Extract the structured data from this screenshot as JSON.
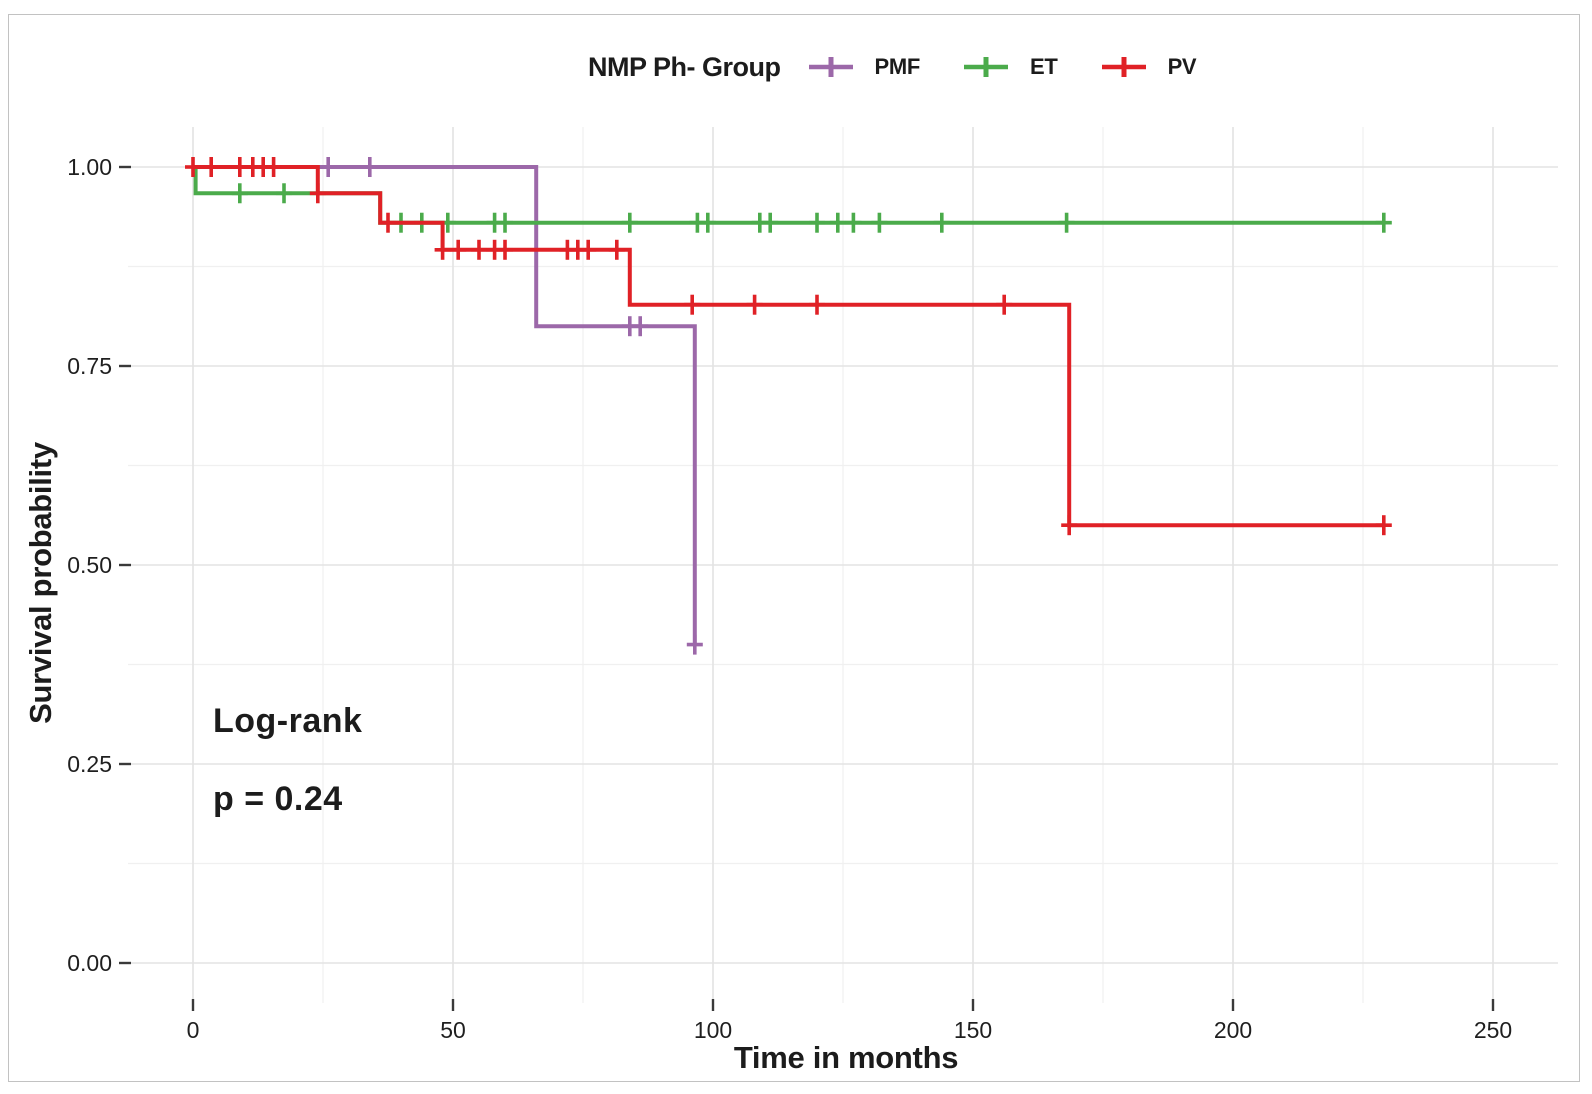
{
  "figure": {
    "background": "#ffffff",
    "border_color": "#c2c2c2"
  },
  "legend": {
    "title": "NMP Ph- Group",
    "items": [
      {
        "label": "PMF",
        "color": "#9c68a9",
        "icon": "plus-line-key-icon"
      },
      {
        "label": "ET",
        "color": "#4bab4b",
        "icon": "plus-line-key-icon"
      },
      {
        "label": "PV",
        "color": "#e02126",
        "icon": "plus-line-key-icon"
      }
    ]
  },
  "annotation": {
    "line1": "Log-rank",
    "line2": "p = 0.24"
  },
  "axes": {
    "x": {
      "title": "Time in months",
      "range": [
        0,
        250
      ],
      "ticks": [
        {
          "label": "0",
          "value": 0
        },
        {
          "label": "50",
          "value": 50
        },
        {
          "label": "100",
          "value": 100
        },
        {
          "label": "150",
          "value": 150
        },
        {
          "label": "200",
          "value": 200
        },
        {
          "label": "250",
          "value": 250
        }
      ],
      "minor_values": [
        25,
        75,
        125,
        175,
        225
      ]
    },
    "y": {
      "title": "Survival probability",
      "range": [
        0,
        1
      ],
      "ticks": [
        {
          "label": "1.00",
          "value": 1.0
        },
        {
          "label": "0.75",
          "value": 0.75
        },
        {
          "label": "0.50",
          "value": 0.5
        },
        {
          "label": "0.25",
          "value": 0.25
        },
        {
          "label": "0.00",
          "value": 0.0
        }
      ],
      "minor_values": [
        0.875,
        0.625,
        0.375,
        0.125
      ]
    }
  },
  "chart_data": {
    "type": "line",
    "subtype": "kaplan-meier-survival-step",
    "title": "NMP Ph- Group",
    "xlabel": "Time in months",
    "ylabel": "Survival probability",
    "xlim": [
      0,
      250
    ],
    "ylim": [
      0,
      1
    ],
    "grid": true,
    "legend_position": "top-center",
    "test_name": "Log-rank",
    "pvalue_text": "p = 0.24",
    "series": [
      {
        "name": "PMF",
        "color": "#9c68a9",
        "steps": [
          [
            0,
            1.0
          ],
          [
            66,
            1.0
          ],
          [
            66,
            0.8
          ],
          [
            96.5,
            0.8
          ],
          [
            96.5,
            0.4
          ]
        ],
        "censor_marks": [
          [
            26,
            1.0
          ],
          [
            34,
            1.0
          ],
          [
            84,
            0.8
          ],
          [
            86,
            0.8
          ],
          [
            96.5,
            0.4
          ]
        ]
      },
      {
        "name": "ET",
        "color": "#4bab4b",
        "steps": [
          [
            0,
            1.0
          ],
          [
            0.5,
            1.0
          ],
          [
            0.5,
            0.967
          ],
          [
            36,
            0.967
          ],
          [
            36,
            0.93
          ],
          [
            229,
            0.93
          ]
        ],
        "censor_marks": [
          [
            9,
            0.967
          ],
          [
            17.5,
            0.967
          ],
          [
            40,
            0.93
          ],
          [
            44,
            0.93
          ],
          [
            49,
            0.93
          ],
          [
            58,
            0.93
          ],
          [
            60,
            0.93
          ],
          [
            84,
            0.93
          ],
          [
            97,
            0.93
          ],
          [
            99,
            0.93
          ],
          [
            109,
            0.93
          ],
          [
            111,
            0.93
          ],
          [
            120,
            0.93
          ],
          [
            124,
            0.93
          ],
          [
            127,
            0.93
          ],
          [
            132,
            0.93
          ],
          [
            144,
            0.93
          ],
          [
            168,
            0.93
          ],
          [
            229,
            0.93
          ]
        ]
      },
      {
        "name": "PV",
        "color": "#e02126",
        "steps": [
          [
            0,
            1.0
          ],
          [
            24,
            1.0
          ],
          [
            24,
            0.967
          ],
          [
            36,
            0.967
          ],
          [
            36,
            0.93
          ],
          [
            48,
            0.93
          ],
          [
            48,
            0.896
          ],
          [
            84,
            0.896
          ],
          [
            84,
            0.827
          ],
          [
            168.5,
            0.827
          ],
          [
            168.5,
            0.55
          ],
          [
            229,
            0.55
          ]
        ],
        "censor_marks": [
          [
            0,
            1.0
          ],
          [
            3.5,
            1.0
          ],
          [
            9,
            1.0
          ],
          [
            11.5,
            1.0
          ],
          [
            13.5,
            1.0
          ],
          [
            15.5,
            1.0
          ],
          [
            24,
            0.967
          ],
          [
            37.5,
            0.93
          ],
          [
            48,
            0.896
          ],
          [
            51,
            0.896
          ],
          [
            55,
            0.896
          ],
          [
            58,
            0.896
          ],
          [
            60,
            0.896
          ],
          [
            72,
            0.896
          ],
          [
            74,
            0.896
          ],
          [
            76,
            0.896
          ],
          [
            81.5,
            0.896
          ],
          [
            96,
            0.827
          ],
          [
            108,
            0.827
          ],
          [
            120,
            0.827
          ],
          [
            156,
            0.827
          ],
          [
            168.5,
            0.55
          ],
          [
            229,
            0.55
          ]
        ]
      }
    ]
  }
}
